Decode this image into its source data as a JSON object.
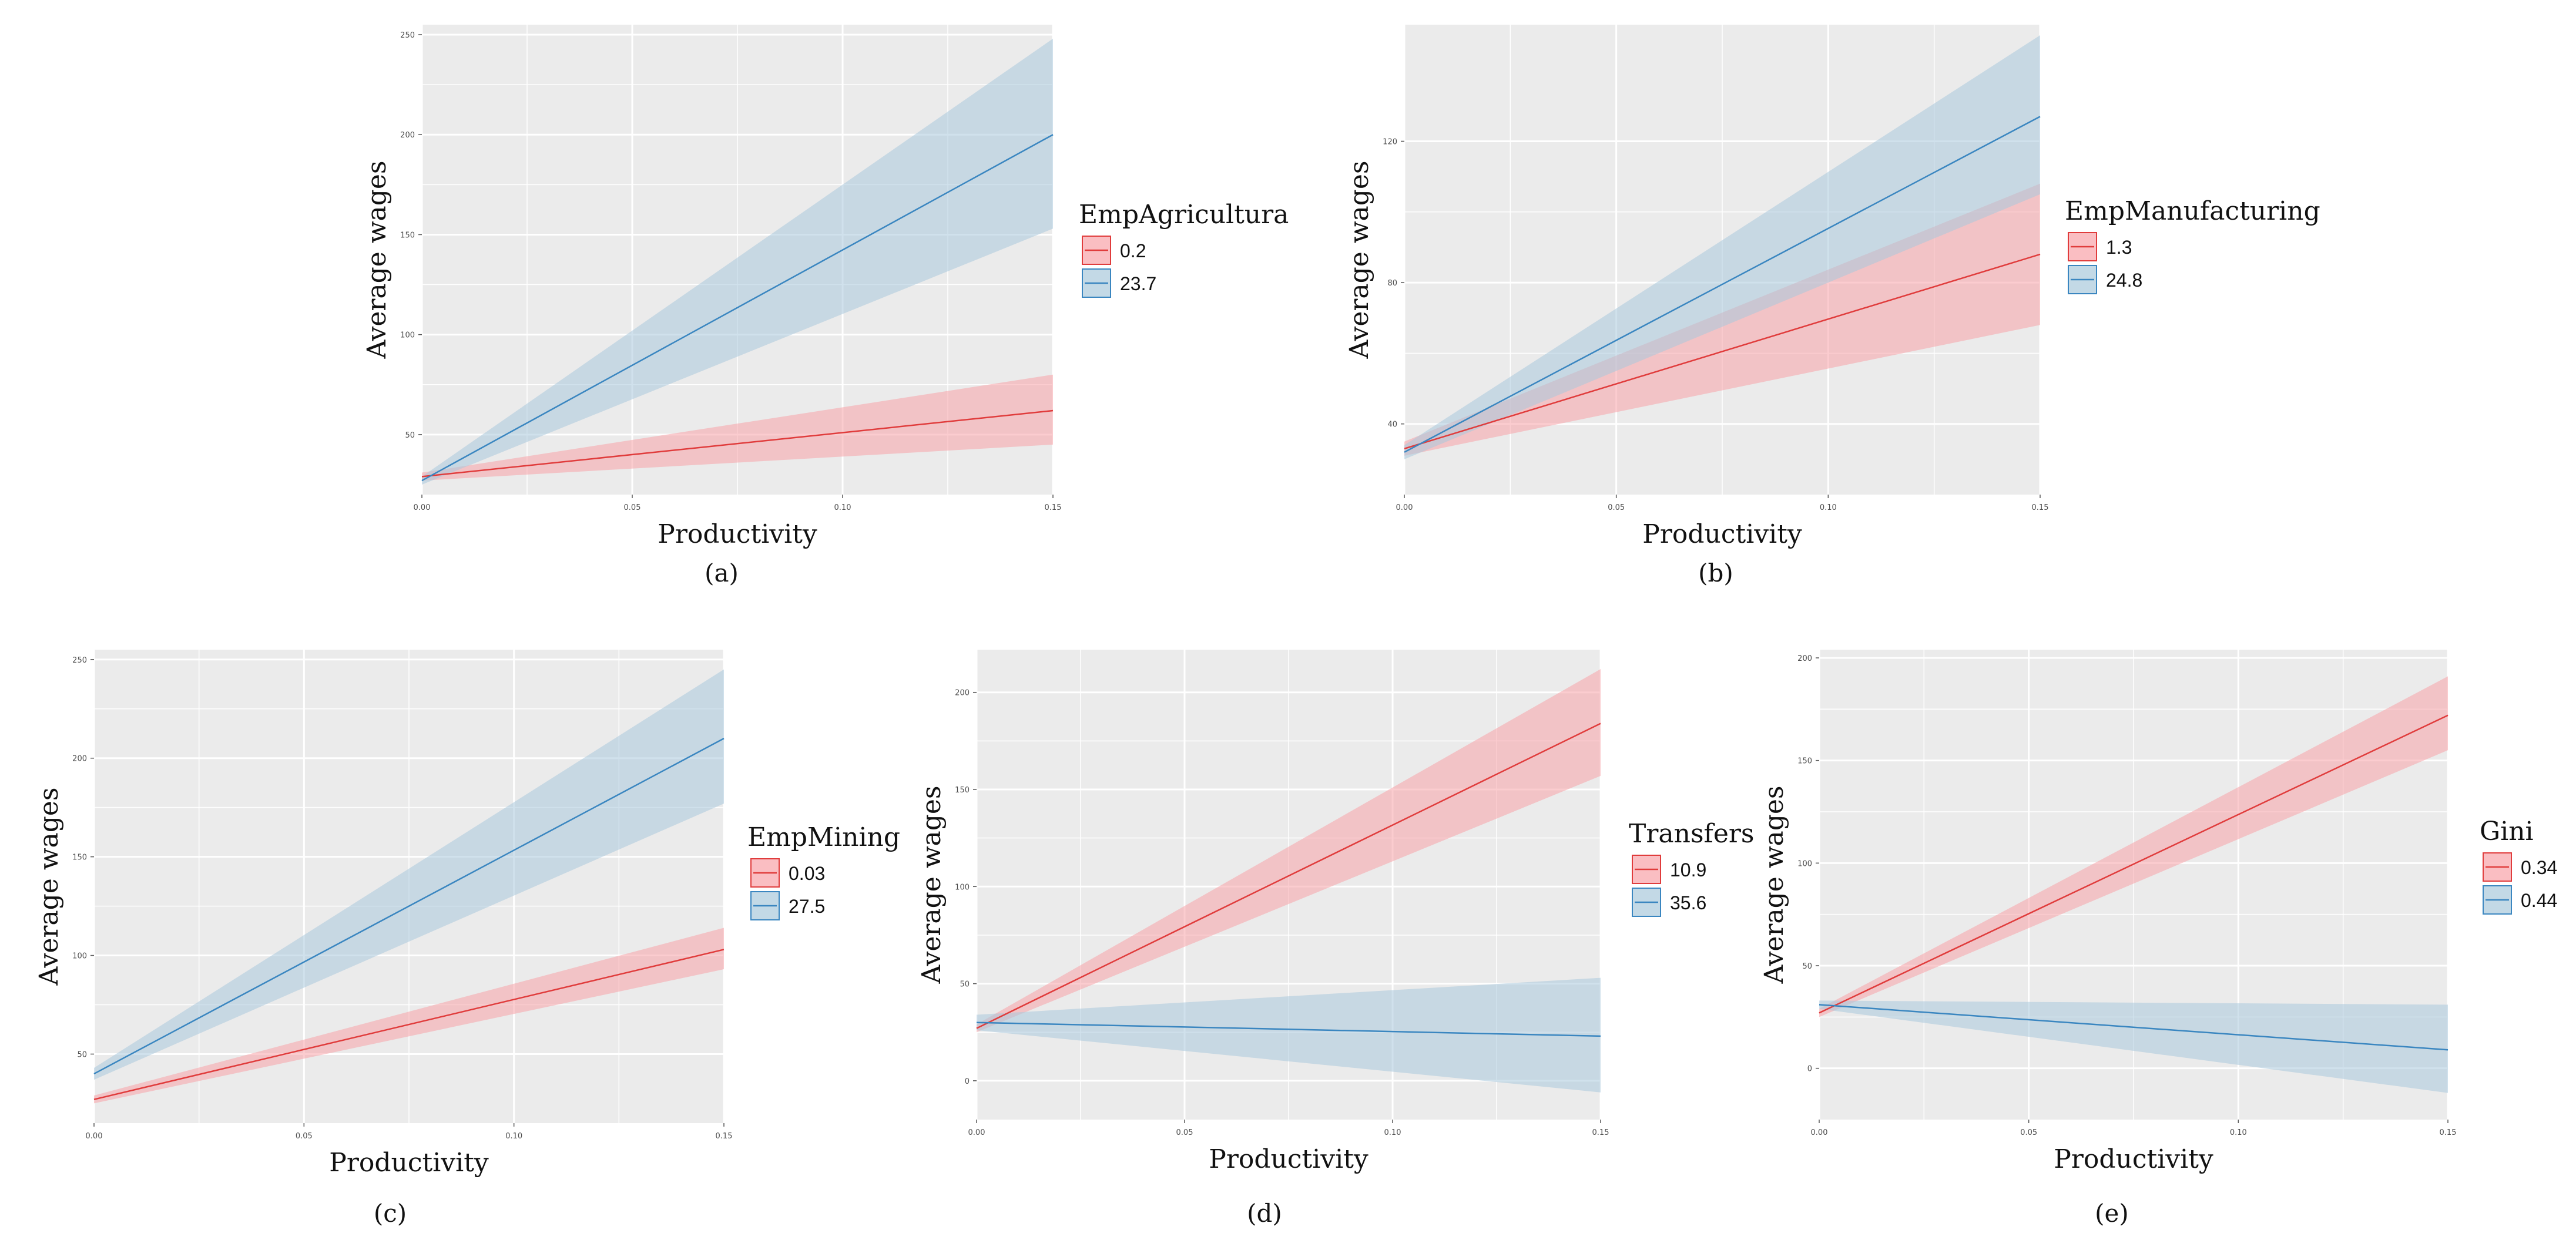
{
  "colors": {
    "panel_bg": "#ebebeb",
    "grid": "#ffffff",
    "low_line": "#e03c3c",
    "low_ribbon": "#f8a3a8",
    "high_line": "#3a86c0",
    "high_ribbon": "#a9c9dc"
  },
  "chart_data": [
    {
      "type": "line",
      "caption": "(a)",
      "xlabel": "Productivity",
      "ylabel": "Average wages",
      "xlim": [
        0,
        0.15
      ],
      "ylim": [
        20,
        255
      ],
      "x_ticks": [
        "0.00",
        "0.05",
        "0.10",
        "0.15"
      ],
      "y_ticks": [
        50,
        100,
        150,
        200,
        250
      ],
      "grid": true,
      "legend": {
        "title": "EmpAgricultura",
        "position": "right"
      },
      "series": [
        {
          "name": "0.2",
          "x": [
            0,
            0.15
          ],
          "y": [
            29,
            62
          ],
          "lower": [
            27,
            45
          ],
          "upper": [
            31,
            80
          ]
        },
        {
          "name": "23.7",
          "x": [
            0,
            0.15
          ],
          "y": [
            27,
            200
          ],
          "lower": [
            25,
            153
          ],
          "upper": [
            29,
            248
          ]
        }
      ]
    },
    {
      "type": "line",
      "caption": "(b)",
      "xlabel": "Productivity",
      "ylabel": "Average wages",
      "xlim": [
        0,
        0.15
      ],
      "ylim": [
        20,
        153
      ],
      "x_ticks": [
        "0.00",
        "0.05",
        "0.10",
        "0.15"
      ],
      "y_ticks": [
        40,
        80,
        120
      ],
      "grid": true,
      "legend": {
        "title": "EmpManufacturing",
        "position": "right"
      },
      "series": [
        {
          "name": "1.3",
          "x": [
            0,
            0.15
          ],
          "y": [
            33,
            88
          ],
          "lower": [
            31,
            68
          ],
          "upper": [
            35,
            108
          ]
        },
        {
          "name": "24.8",
          "x": [
            0,
            0.15
          ],
          "y": [
            32,
            127
          ],
          "lower": [
            30,
            105
          ],
          "upper": [
            34,
            150
          ]
        }
      ]
    },
    {
      "type": "line",
      "caption": "(c)",
      "xlabel": "Productivity",
      "ylabel": "Average wages",
      "xlim": [
        0,
        0.15
      ],
      "ylim": [
        15,
        255
      ],
      "x_ticks": [
        "0.00",
        "0.05",
        "0.10",
        "0.15"
      ],
      "y_ticks": [
        50,
        100,
        150,
        200,
        250
      ],
      "grid": true,
      "legend": {
        "title": "EmpMining",
        "position": "right"
      },
      "series": [
        {
          "name": "0.03",
          "x": [
            0,
            0.15
          ],
          "y": [
            27,
            103
          ],
          "lower": [
            25,
            93
          ],
          "upper": [
            29,
            114
          ]
        },
        {
          "name": "27.5",
          "x": [
            0,
            0.15
          ],
          "y": [
            40,
            210
          ],
          "lower": [
            37,
            177
          ],
          "upper": [
            43,
            245
          ]
        }
      ]
    },
    {
      "type": "line",
      "caption": "(d)",
      "xlabel": "Productivity",
      "ylabel": "Average wages",
      "xlim": [
        0,
        0.15
      ],
      "ylim": [
        -20,
        222
      ],
      "x_ticks": [
        "0.00",
        "0.05",
        "0.10",
        "0.15"
      ],
      "y_ticks": [
        0,
        50,
        100,
        150,
        200
      ],
      "grid": true,
      "legend": {
        "title": "Transfers",
        "position": "right"
      },
      "series": [
        {
          "name": "10.9",
          "x": [
            0,
            0.15
          ],
          "y": [
            27,
            184
          ],
          "lower": [
            25,
            157
          ],
          "upper": [
            29,
            212
          ]
        },
        {
          "name": "35.6",
          "x": [
            0,
            0.15
          ],
          "y": [
            30,
            23
          ],
          "lower": [
            26,
            -6
          ],
          "upper": [
            34,
            53
          ]
        }
      ]
    },
    {
      "type": "line",
      "caption": "(e)",
      "xlabel": "Productivity",
      "ylabel": "Average wages",
      "xlim": [
        0,
        0.15
      ],
      "ylim": [
        -25,
        204
      ],
      "x_ticks": [
        "0.00",
        "0.05",
        "0.10",
        "0.15"
      ],
      "y_ticks": [
        0,
        50,
        100,
        150,
        200
      ],
      "grid": true,
      "legend": {
        "title": "Gini",
        "position": "right"
      },
      "series": [
        {
          "name": "0.34",
          "x": [
            0,
            0.15
          ],
          "y": [
            27,
            172
          ],
          "lower": [
            25,
            155
          ],
          "upper": [
            29,
            191
          ]
        },
        {
          "name": "0.44",
          "x": [
            0,
            0.15
          ],
          "y": [
            31,
            9
          ],
          "lower": [
            29,
            -12
          ],
          "upper": [
            33,
            31
          ]
        }
      ]
    }
  ]
}
